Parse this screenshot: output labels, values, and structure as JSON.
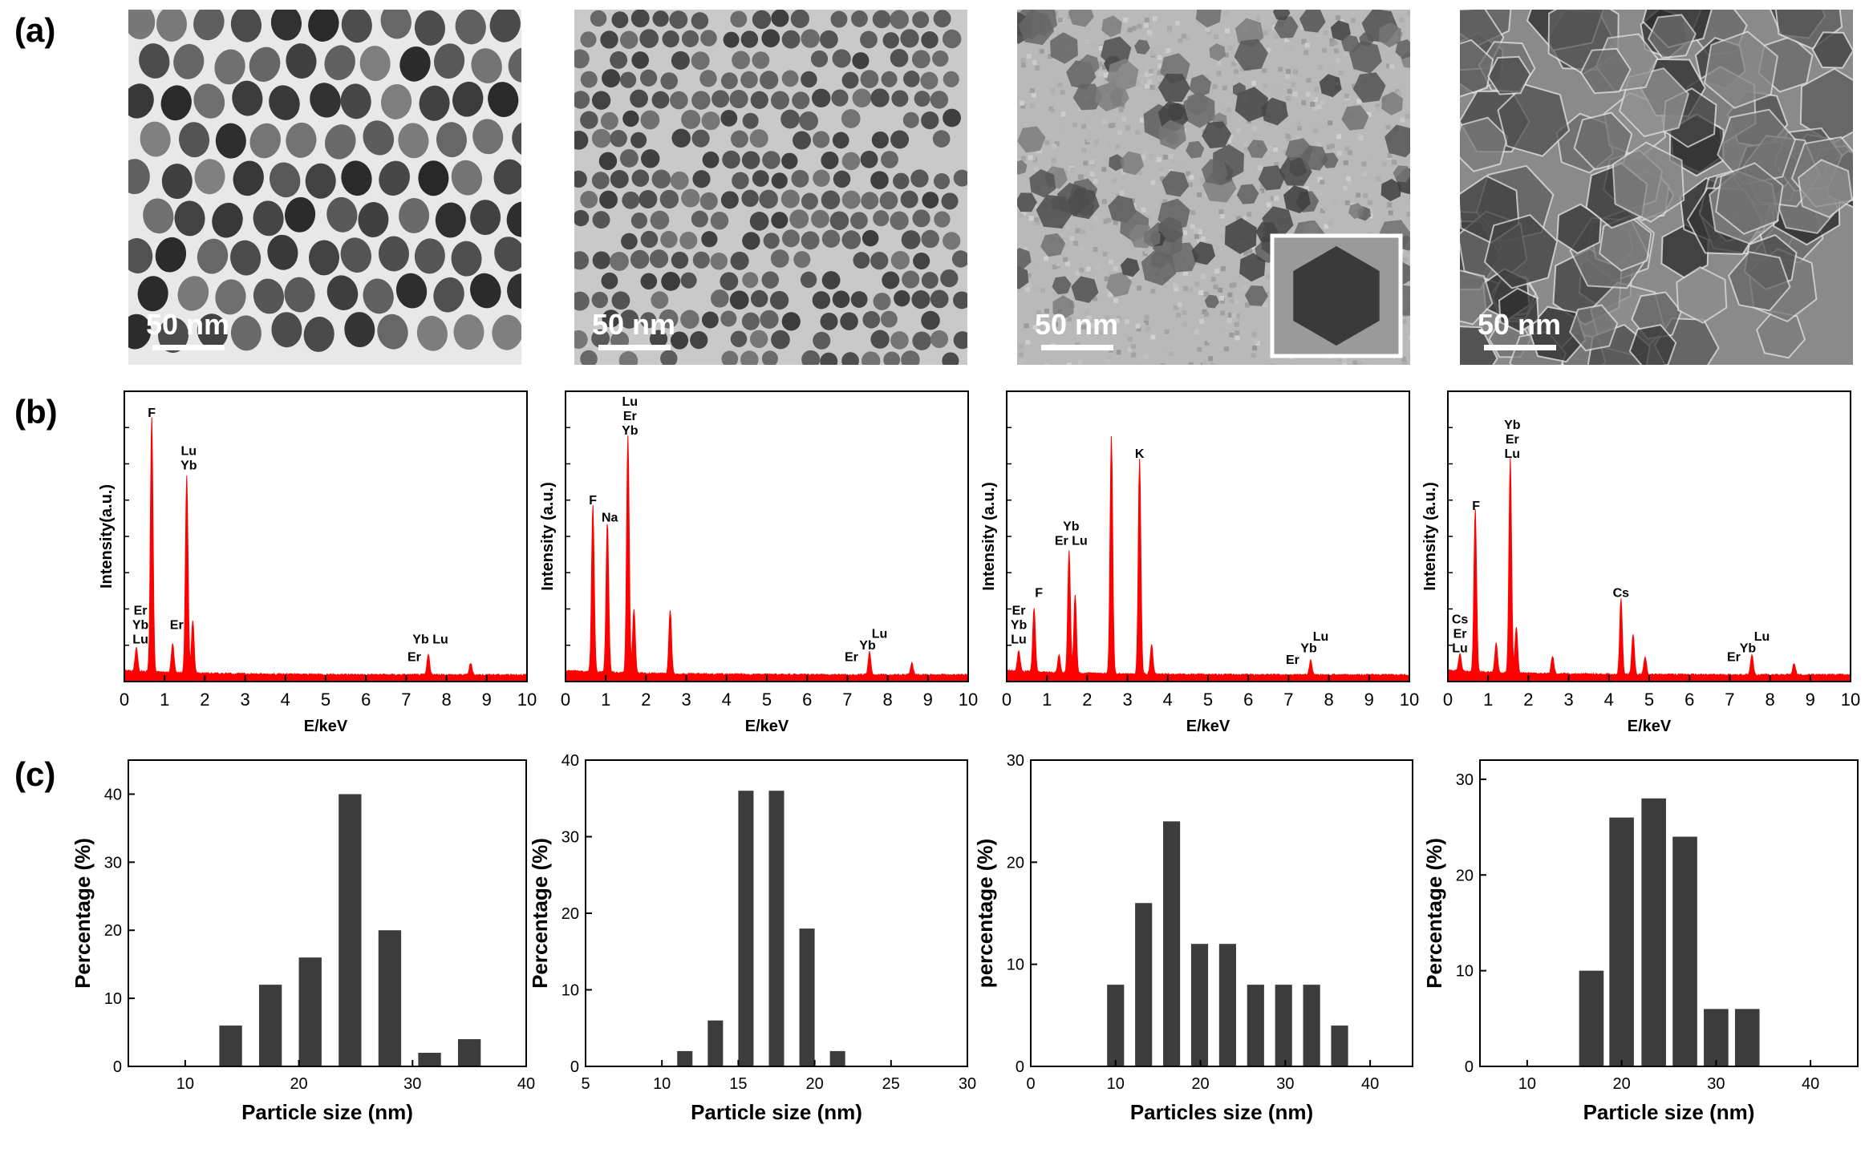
{
  "panel_labels": {
    "a": "(a)",
    "b": "(b)",
    "c": "(c)"
  },
  "tem_images": [
    {
      "scale_label": "50 nm",
      "tone": "light-gap",
      "shape": "rhombic",
      "inset": false
    },
    {
      "scale_label": "50 nm",
      "tone": "light",
      "shape": "spherical",
      "inset": false
    },
    {
      "scale_label": "50 nm",
      "tone": "grainy",
      "shape": "irregular",
      "inset": true
    },
    {
      "scale_label": "50 nm",
      "tone": "dark",
      "shape": "hexagonal",
      "inset": false
    }
  ],
  "colors": {
    "spectrum": "#ff0000",
    "bar": "#3c3c3c"
  },
  "chart_data": [
    {
      "type": "line",
      "xlabel": "E/keV",
      "ylabel": "Intensity(a.u.)",
      "xlim": [
        0,
        10
      ],
      "xticks": [
        "0",
        "1",
        "2",
        "3",
        "4",
        "5",
        "6",
        "7",
        "8",
        "9",
        "10"
      ],
      "peaks": [
        [
          0.3,
          0.08
        ],
        [
          0.68,
          0.88
        ],
        [
          1.2,
          0.1
        ],
        [
          1.55,
          0.68
        ],
        [
          1.7,
          0.18
        ],
        [
          7.55,
          0.07
        ],
        [
          8.6,
          0.04
        ]
      ],
      "annotations": [
        {
          "x": 0.68,
          "y": 0.9,
          "lines": [
            "F"
          ]
        },
        {
          "x": 1.6,
          "y": 0.72,
          "lines": [
            "Lu",
            "Yb"
          ]
        },
        {
          "x": 0.4,
          "y": 0.12,
          "lines": [
            "Er",
            "Yb",
            "Lu"
          ]
        },
        {
          "x": 1.3,
          "y": 0.17,
          "lines": [
            "Er"
          ]
        },
        {
          "x": 7.2,
          "y": 0.06,
          "lines": [
            "Er"
          ]
        },
        {
          "x": 7.6,
          "y": 0.12,
          "lines": [
            "Yb Lu"
          ]
        }
      ]
    },
    {
      "type": "line",
      "xlabel": "E/keV",
      "ylabel": "Intensity (a.u.)",
      "xlim": [
        0,
        10
      ],
      "xticks": [
        "0",
        "1",
        "2",
        "3",
        "4",
        "5",
        "6",
        "7",
        "8",
        "9",
        "10"
      ],
      "peaks": [
        [
          0.68,
          0.58
        ],
        [
          1.04,
          0.52
        ],
        [
          1.55,
          0.82
        ],
        [
          1.7,
          0.22
        ],
        [
          2.6,
          0.22
        ],
        [
          7.55,
          0.08
        ],
        [
          8.6,
          0.04
        ]
      ],
      "annotations": [
        {
          "x": 0.68,
          "y": 0.6,
          "lines": [
            "F"
          ]
        },
        {
          "x": 1.1,
          "y": 0.54,
          "lines": [
            "Na"
          ]
        },
        {
          "x": 1.6,
          "y": 0.84,
          "lines": [
            "Lu",
            "Er",
            "Yb"
          ]
        },
        {
          "x": 7.1,
          "y": 0.06,
          "lines": [
            "Er"
          ]
        },
        {
          "x": 7.5,
          "y": 0.1,
          "lines": [
            "Yb"
          ]
        },
        {
          "x": 7.8,
          "y": 0.14,
          "lines": [
            "Lu"
          ]
        }
      ]
    },
    {
      "type": "line",
      "xlabel": "E/keV",
      "ylabel": "Intensity (a.u.)",
      "xlim": [
        0,
        10
      ],
      "xticks": [
        "0",
        "1",
        "2",
        "3",
        "4",
        "5",
        "6",
        "7",
        "8",
        "9",
        "10"
      ],
      "peaks": [
        [
          0.3,
          0.07
        ],
        [
          0.68,
          0.22
        ],
        [
          1.3,
          0.06
        ],
        [
          1.55,
          0.42
        ],
        [
          1.7,
          0.27
        ],
        [
          2.6,
          0.82
        ],
        [
          3.3,
          0.74
        ],
        [
          3.6,
          0.1
        ],
        [
          7.55,
          0.05
        ]
      ],
      "annotations": [
        {
          "x": 0.3,
          "y": 0.12,
          "lines": [
            "Er",
            "Yb",
            "Lu"
          ]
        },
        {
          "x": 0.8,
          "y": 0.28,
          "lines": [
            "F"
          ]
        },
        {
          "x": 1.6,
          "y": 0.46,
          "lines": [
            "Yb",
            "Er Lu"
          ]
        },
        {
          "x": 3.3,
          "y": 0.76,
          "lines": [
            "K"
          ]
        },
        {
          "x": 7.1,
          "y": 0.05,
          "lines": [
            "Er"
          ]
        },
        {
          "x": 7.5,
          "y": 0.09,
          "lines": [
            "Yb"
          ]
        },
        {
          "x": 7.8,
          "y": 0.13,
          "lines": [
            "Lu"
          ]
        }
      ]
    },
    {
      "type": "line",
      "xlabel": "E/keV",
      "ylabel": "Intensity (a.u.)",
      "xlim": [
        0,
        10
      ],
      "xticks": [
        "0",
        "1",
        "2",
        "3",
        "4",
        "5",
        "6",
        "7",
        "8",
        "9",
        "10"
      ],
      "peaks": [
        [
          0.3,
          0.06
        ],
        [
          0.68,
          0.56
        ],
        [
          1.2,
          0.1
        ],
        [
          1.55,
          0.74
        ],
        [
          1.7,
          0.16
        ],
        [
          2.6,
          0.06
        ],
        [
          4.3,
          0.26
        ],
        [
          4.6,
          0.14
        ],
        [
          4.9,
          0.06
        ],
        [
          7.55,
          0.07
        ],
        [
          8.6,
          0.04
        ]
      ],
      "annotations": [
        {
          "x": 0.3,
          "y": 0.09,
          "lines": [
            "Cs",
            "Er",
            "Lu"
          ]
        },
        {
          "x": 0.7,
          "y": 0.58,
          "lines": [
            "F"
          ]
        },
        {
          "x": 1.6,
          "y": 0.76,
          "lines": [
            "Yb",
            "Er",
            "Lu"
          ]
        },
        {
          "x": 4.3,
          "y": 0.28,
          "lines": [
            "Cs"
          ]
        },
        {
          "x": 7.1,
          "y": 0.06,
          "lines": [
            "Er"
          ]
        },
        {
          "x": 7.45,
          "y": 0.09,
          "lines": [
            "Yb"
          ]
        },
        {
          "x": 7.8,
          "y": 0.13,
          "lines": [
            "Lu"
          ]
        }
      ]
    },
    {
      "type": "bar",
      "xlabel": "Particle size (nm)",
      "ylabel": "Percentage (%)",
      "xlim": [
        5,
        40
      ],
      "ylim": [
        0,
        45
      ],
      "xticks": [
        10,
        20,
        30,
        40
      ],
      "yticks": [
        0,
        10,
        20,
        30,
        40
      ],
      "bar_width": 2,
      "x": [
        14,
        17.5,
        21,
        24.5,
        28,
        31.5,
        35
      ],
      "values": [
        6,
        12,
        16,
        40,
        20,
        2,
        4
      ]
    },
    {
      "type": "bar",
      "xlabel": "Particle size (nm)",
      "ylabel": "Percentage (%)",
      "xlim": [
        5,
        30
      ],
      "ylim": [
        0,
        40
      ],
      "xticks": [
        5,
        10,
        15,
        20,
        25,
        30
      ],
      "yticks": [
        0,
        10,
        20,
        30,
        40
      ],
      "bar_width": 1,
      "x": [
        11.5,
        13.5,
        15.5,
        17.5,
        19.5,
        21.5
      ],
      "values": [
        2,
        6,
        36,
        36,
        18,
        2
      ]
    },
    {
      "type": "bar",
      "xlabel": "Particles size (nm)",
      "ylabel": "percentage (%)",
      "xlim": [
        0,
        45
      ],
      "ylim": [
        0,
        30
      ],
      "xticks": [
        0,
        10,
        20,
        30,
        40
      ],
      "yticks": [
        0,
        10,
        20,
        30
      ],
      "bar_width": 2,
      "x": [
        10,
        13.3,
        16.6,
        19.9,
        23.2,
        26.5,
        29.8,
        33.1,
        36.4
      ],
      "values": [
        8,
        16,
        24,
        12,
        12,
        8,
        8,
        8,
        4
      ]
    },
    {
      "type": "bar",
      "xlabel": "Particle size (nm)",
      "ylabel": "Percentage (%)",
      "xlim": [
        5,
        45
      ],
      "ylim": [
        0,
        32
      ],
      "xticks": [
        10,
        20,
        30,
        40
      ],
      "yticks": [
        0,
        10,
        20,
        30
      ],
      "bar_width": 2.6,
      "x": [
        16.8,
        20,
        23.4,
        26.7,
        30,
        33.3
      ],
      "values": [
        10,
        26,
        28,
        24,
        6,
        6
      ]
    }
  ]
}
